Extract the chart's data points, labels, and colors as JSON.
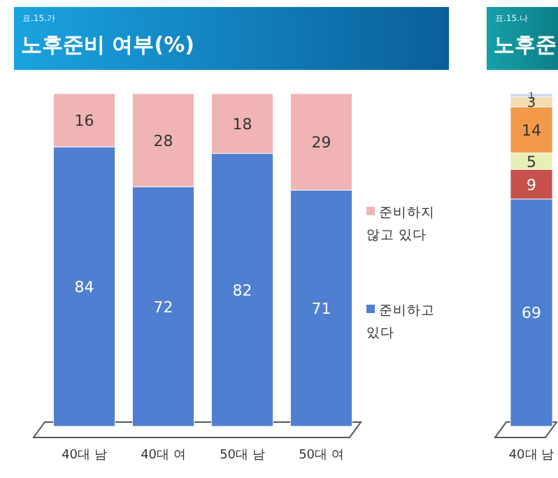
{
  "chart_data": [
    {
      "type": "bar",
      "title": "노후준비 여부(%)",
      "subtitle": "표.15.가",
      "categories": [
        "40대 남",
        "40대 여",
        "50대 남",
        "50대 여"
      ],
      "stacked": true,
      "data_labels": true,
      "legend": "right",
      "series": [
        {
          "name": "준비하고 있다",
          "color": "#4f7fd0",
          "values": [
            84,
            72,
            82,
            71
          ]
        },
        {
          "name": "준비하지 않고 있다",
          "color": "#f0b4b4",
          "values": [
            16,
            28,
            18,
            29
          ]
        }
      ]
    },
    {
      "type": "bar",
      "title": "노후준",
      "subtitle": "표.15.나",
      "categories": [
        "40대 남"
      ],
      "stacked": true,
      "data_labels": true,
      "series": [
        {
          "color": "#4f7fd0",
          "values": [
            69
          ]
        },
        {
          "color": "#c8504a",
          "values": [
            9
          ]
        },
        {
          "color": "#e8efb4",
          "values": [
            5
          ]
        },
        {
          "color": "#f39a4a",
          "values": [
            14
          ]
        },
        {
          "color": "#f3dcb0",
          "values": [
            3
          ]
        },
        {
          "color": "#c9d8ec",
          "values": [
            1
          ]
        }
      ]
    }
  ]
}
